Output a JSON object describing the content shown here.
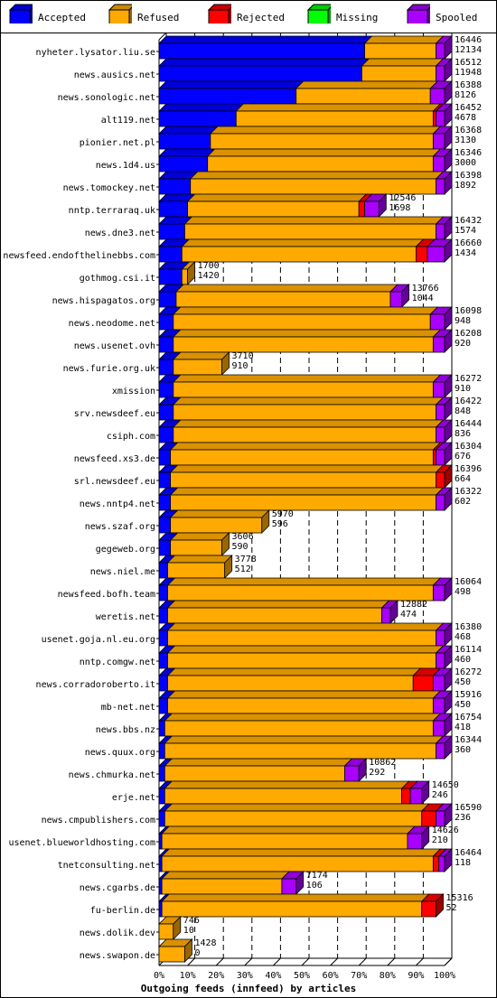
{
  "chart_data": {
    "type": "bar",
    "stacked": true,
    "orientation": "horizontal",
    "title": "Outgoing feeds (innfeed) by articles",
    "xlim": [
      0,
      100
    ],
    "x_ticks": [
      "0%",
      "10%",
      "20%",
      "30%",
      "40%",
      "50%",
      "60%",
      "70%",
      "80%",
      "90%",
      "100%"
    ],
    "legend_position": "top",
    "series": [
      {
        "name": "Accepted",
        "color": "#0000ff"
      },
      {
        "name": "Refused",
        "color": "#ffaa00"
      },
      {
        "name": "Rejected",
        "color": "#ff0000"
      },
      {
        "name": "Missing",
        "color": "#00ff00"
      },
      {
        "name": "Spooled",
        "color": "#aa00ff"
      }
    ],
    "rows": [
      {
        "name": "nyheter.lysator.liu.se",
        "total": "16446",
        "accepted": "12134",
        "shares": [
          72,
          25,
          0,
          0,
          3
        ]
      },
      {
        "name": "news.ausics.net",
        "total": "16512",
        "accepted": "11948",
        "shares": [
          71,
          26,
          0,
          0,
          3
        ]
      },
      {
        "name": "news.sonologic.net",
        "total": "16388",
        "accepted": "8126",
        "shares": [
          48,
          47,
          0,
          0,
          5
        ]
      },
      {
        "name": "alt119.net",
        "total": "16452",
        "accepted": "4678",
        "shares": [
          27,
          69,
          1,
          0,
          3
        ]
      },
      {
        "name": "pionier.net.pl",
        "total": "16368",
        "accepted": "3130",
        "shares": [
          18,
          78,
          0,
          0,
          4
        ]
      },
      {
        "name": "news.1d4.us",
        "total": "16346",
        "accepted": "3000",
        "shares": [
          17,
          79,
          0,
          0,
          4
        ]
      },
      {
        "name": "news.tomockey.net",
        "total": "16398",
        "accepted": "1892",
        "shares": [
          11,
          86,
          0,
          0,
          3
        ]
      },
      {
        "name": "nntp.terraraq.uk",
        "total": "12546",
        "accepted": "1698",
        "shares": [
          10,
          60,
          2,
          0,
          5
        ]
      },
      {
        "name": "news.dne3.net",
        "total": "16432",
        "accepted": "1574",
        "shares": [
          9,
          88,
          0,
          0,
          3
        ]
      },
      {
        "name": "newsfeed.endofthelinebbs.com",
        "total": "16660",
        "accepted": "1434",
        "shares": [
          8,
          82,
          4,
          0,
          6
        ]
      },
      {
        "name": "gothmog.csi.it",
        "total": "1700",
        "accepted": "1420",
        "shares": [
          8,
          2,
          0,
          0,
          0
        ]
      },
      {
        "name": "news.hispagatos.org",
        "total": "13766",
        "accepted": "1044",
        "shares": [
          6,
          75,
          0,
          0,
          4
        ]
      },
      {
        "name": "news.neodome.net",
        "total": "16098",
        "accepted": "948",
        "shares": [
          5,
          90,
          0,
          0,
          5
        ]
      },
      {
        "name": "news.usenet.ovh",
        "total": "16208",
        "accepted": "920",
        "shares": [
          5,
          91,
          0,
          0,
          4
        ]
      },
      {
        "name": "news.furie.org.uk",
        "total": "3710",
        "accepted": "910",
        "shares": [
          5,
          17,
          0,
          0,
          0
        ]
      },
      {
        "name": "xmission",
        "total": "16272",
        "accepted": "910",
        "shares": [
          5,
          91,
          0,
          0,
          4
        ]
      },
      {
        "name": "srv.newsdeef.eu",
        "total": "16422",
        "accepted": "848",
        "shares": [
          5,
          92,
          0,
          0,
          3
        ]
      },
      {
        "name": "csiph.com",
        "total": "16444",
        "accepted": "836",
        "shares": [
          5,
          92,
          0,
          0,
          3
        ]
      },
      {
        "name": "newsfeed.xs3.de",
        "total": "16304",
        "accepted": "676",
        "shares": [
          4,
          92,
          1,
          0,
          3
        ]
      },
      {
        "name": "srl.newsdeef.eu",
        "total": "16396",
        "accepted": "664",
        "shares": [
          4,
          93,
          3,
          0,
          0
        ]
      },
      {
        "name": "news.nntp4.net",
        "total": "16322",
        "accepted": "602",
        "shares": [
          4,
          93,
          0,
          0,
          3
        ]
      },
      {
        "name": "news.szaf.org",
        "total": "5970",
        "accepted": "596",
        "shares": [
          4,
          32,
          0,
          0,
          0
        ]
      },
      {
        "name": "gegeweb.org",
        "total": "3606",
        "accepted": "590",
        "shares": [
          4,
          18,
          0,
          0,
          0
        ]
      },
      {
        "name": "news.niel.me",
        "total": "3778",
        "accepted": "512",
        "shares": [
          3,
          20,
          0,
          0,
          0
        ]
      },
      {
        "name": "newsfeed.bofh.team",
        "total": "16064",
        "accepted": "498",
        "shares": [
          3,
          93,
          0,
          0,
          4
        ]
      },
      {
        "name": "weretis.net",
        "total": "12882",
        "accepted": "474",
        "shares": [
          3,
          75,
          0,
          0,
          3
        ]
      },
      {
        "name": "usenet.goja.nl.eu.org",
        "total": "16380",
        "accepted": "468",
        "shares": [
          3,
          94,
          0,
          0,
          3
        ]
      },
      {
        "name": "nntp.comgw.net",
        "total": "16114",
        "accepted": "460",
        "shares": [
          3,
          94,
          0,
          0,
          3
        ]
      },
      {
        "name": "news.corradoroberto.it",
        "total": "16272",
        "accepted": "450",
        "shares": [
          3,
          86,
          7,
          0,
          4
        ]
      },
      {
        "name": "mb-net.net",
        "total": "15916",
        "accepted": "450",
        "shares": [
          3,
          93,
          0,
          0,
          4
        ]
      },
      {
        "name": "news.bbs.nz",
        "total": "16754",
        "accepted": "418",
        "shares": [
          2,
          94,
          0,
          0,
          4
        ]
      },
      {
        "name": "news.quux.org",
        "total": "16344",
        "accepted": "360",
        "shares": [
          2,
          95,
          0,
          0,
          3
        ]
      },
      {
        "name": "news.chmurka.net",
        "total": "10862",
        "accepted": "292",
        "shares": [
          2,
          63,
          0,
          0,
          5
        ]
      },
      {
        "name": "erje.net",
        "total": "14650",
        "accepted": "246",
        "shares": [
          2,
          83,
          3,
          0,
          4
        ]
      },
      {
        "name": "news.cmpublishers.com",
        "total": "16590",
        "accepted": "236",
        "shares": [
          2,
          90,
          5,
          0,
          3
        ]
      },
      {
        "name": "usenet.blueworldhosting.com",
        "total": "14626",
        "accepted": "210",
        "shares": [
          1,
          86,
          0,
          0,
          5
        ]
      },
      {
        "name": "tnetconsulting.net",
        "total": "16464",
        "accepted": "118",
        "shares": [
          1,
          95,
          2,
          0,
          2
        ]
      },
      {
        "name": "news.cgarbs.de",
        "total": "7174",
        "accepted": "106",
        "shares": [
          1,
          42,
          0,
          0,
          5
        ]
      },
      {
        "name": "fu-berlin.de",
        "total": "15316",
        "accepted": "52",
        "shares": [
          1,
          91,
          5,
          0,
          0
        ]
      },
      {
        "name": "news.dolik.dev",
        "total": "746",
        "accepted": "10",
        "shares": [
          0,
          5,
          0,
          0,
          0
        ]
      },
      {
        "name": "news.swapon.de",
        "total": "1428",
        "accepted": "0",
        "shares": [
          0,
          9,
          0,
          0,
          0
        ]
      }
    ]
  }
}
